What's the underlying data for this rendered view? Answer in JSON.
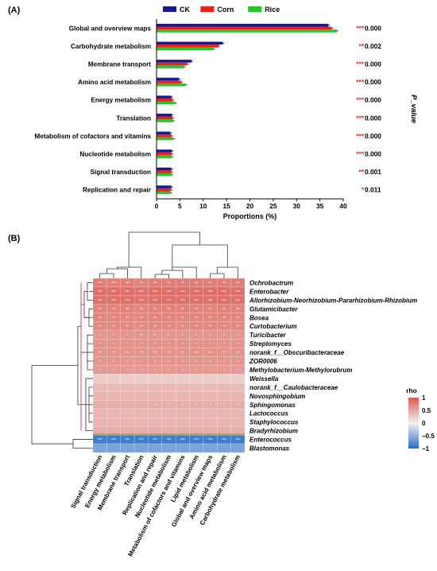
{
  "panels": {
    "a": "(A)",
    "b": "(B)"
  },
  "chart_data": [
    {
      "type": "bar",
      "orientation": "horizontal",
      "categories": [
        "Global and overview maps",
        "Carbohydrate metabolism",
        "Membrane transport",
        "Amino acid metabolism",
        "Energy metabolism",
        "Translation",
        "Metabolism of cofactors and vitamins",
        "Nucleotide metabolism",
        "Signal transduction",
        "Replication and repair"
      ],
      "series": [
        {
          "name": "CK",
          "color": "#1a1a8c",
          "values": [
            36.8,
            14.2,
            7.5,
            4.8,
            3.2,
            3.3,
            3.0,
            3.3,
            3.2,
            3.2
          ]
        },
        {
          "name": "Corn",
          "color": "#e8201e",
          "values": [
            37.5,
            13.3,
            6.6,
            5.3,
            3.4,
            3.4,
            3.2,
            3.2,
            3.2,
            3.1
          ]
        },
        {
          "name": "Rice",
          "color": "#2cc42c",
          "values": [
            38.6,
            12.2,
            5.9,
            6.2,
            4.0,
            3.6,
            3.6,
            3.3,
            3.2,
            3.0
          ]
        }
      ],
      "significance": [
        "***",
        "**",
        "***",
        "***",
        "***",
        "***",
        "***",
        "***",
        "**",
        "*"
      ],
      "p_values": [
        "0.000",
        "0.002",
        "0.000",
        "0.000",
        "0.000",
        "0.000",
        "0.000",
        "0.000",
        "0.001",
        "0.011"
      ],
      "xlabel": "Proportions (%)",
      "right_label": "P_value",
      "xticks": [
        "0",
        "5",
        "10",
        "15",
        "20",
        "25",
        "30",
        "35",
        "40"
      ],
      "xlim": [
        0,
        40
      ],
      "legend_position": "top"
    },
    {
      "type": "heatmap",
      "x_labels": [
        "Signal transduction",
        "Energy metabolism",
        "Membrane transport",
        "Translation",
        "Replication and repair",
        "Nucleotide metabolism",
        "Metabolism of cofactors and vitamins",
        "Lipid metabolism",
        "Global and overview maps",
        "Amino acid metabolism",
        "Carbohydrate metabolism"
      ],
      "y_labels": [
        "Ochrobactrum",
        "Enterobacter",
        "Allorhizobium-Neorhizobium-Pararhizobium-Rhizobium",
        "Glutamicibacter",
        "Bosea",
        "Curtobacterium",
        "Turicibacter",
        "Streptomyces",
        "norank_f__Obscuribacteraceae",
        "ZOR0006",
        "Methylobacterium-Methylorubrum",
        "Weissella",
        "norank_f__Caulobacteraceae",
        "Novosphingobium",
        "Sphingomonas",
        "Lactococcus",
        "Staphylococcus",
        "Bradyrhizobium",
        "Enterococcus",
        "Blastomonas"
      ],
      "values": [
        [
          0.75,
          0.75,
          0.75,
          0.72,
          0.75,
          0.75,
          0.75,
          0.75,
          0.75,
          0.75,
          0.75
        ],
        [
          0.85,
          0.85,
          0.85,
          0.82,
          0.85,
          0.85,
          0.85,
          0.85,
          0.85,
          0.85,
          0.85
        ],
        [
          0.85,
          0.85,
          0.85,
          0.82,
          0.85,
          0.85,
          0.85,
          0.85,
          0.85,
          0.85,
          0.85
        ],
        [
          0.72,
          0.72,
          0.72,
          0.7,
          0.72,
          0.72,
          0.72,
          0.72,
          0.72,
          0.72,
          0.72
        ],
        [
          0.7,
          0.7,
          0.7,
          0.68,
          0.7,
          0.7,
          0.7,
          0.7,
          0.7,
          0.7,
          0.7
        ],
        [
          0.68,
          0.68,
          0.68,
          0.66,
          0.68,
          0.68,
          0.68,
          0.68,
          0.68,
          0.68,
          0.68
        ],
        [
          0.6,
          0.6,
          0.6,
          0.62,
          0.6,
          0.6,
          0.6,
          0.6,
          0.6,
          0.6,
          0.6
        ],
        [
          0.62,
          0.62,
          0.62,
          0.62,
          0.62,
          0.62,
          0.62,
          0.62,
          0.62,
          0.62,
          0.62
        ],
        [
          0.62,
          0.62,
          0.62,
          0.62,
          0.62,
          0.62,
          0.62,
          0.62,
          0.62,
          0.62,
          0.62
        ],
        [
          0.6,
          0.6,
          0.6,
          0.6,
          0.6,
          0.6,
          0.6,
          0.6,
          0.6,
          0.6,
          0.6
        ],
        [
          0.58,
          0.58,
          0.58,
          0.58,
          0.58,
          0.58,
          0.58,
          0.58,
          0.58,
          0.58,
          0.58
        ],
        [
          0.25,
          0.25,
          0.25,
          0.25,
          0.25,
          0.25,
          0.25,
          0.25,
          0.25,
          0.25,
          0.25
        ],
        [
          0.35,
          0.35,
          0.35,
          0.35,
          0.35,
          0.35,
          0.35,
          0.35,
          0.35,
          0.35,
          0.35
        ],
        [
          0.4,
          0.4,
          0.4,
          0.4,
          0.4,
          0.4,
          0.4,
          0.4,
          0.4,
          0.4,
          0.4
        ],
        [
          0.45,
          0.45,
          0.45,
          0.45,
          0.45,
          0.45,
          0.45,
          0.45,
          0.45,
          0.45,
          0.45
        ],
        [
          0.4,
          0.4,
          0.4,
          0.4,
          0.4,
          0.4,
          0.4,
          0.4,
          0.4,
          0.4,
          0.4
        ],
        [
          0.4,
          0.4,
          0.4,
          0.4,
          0.4,
          0.4,
          0.4,
          0.4,
          0.4,
          0.4,
          0.4
        ],
        [
          0.45,
          0.45,
          0.45,
          0.45,
          0.45,
          0.45,
          0.45,
          0.45,
          0.45,
          0.45,
          0.45
        ],
        [
          -0.88,
          -0.88,
          -0.88,
          -0.88,
          -0.88,
          -0.88,
          -0.88,
          -0.88,
          -0.88,
          -0.88,
          -0.88
        ],
        [
          -0.6,
          -0.6,
          -0.6,
          -0.6,
          -0.6,
          -0.6,
          -0.6,
          -0.6,
          -0.6,
          -0.6,
          -0.6
        ]
      ],
      "significance": [
        [
          "***",
          "***",
          "***",
          "**",
          "**",
          "**",
          "**",
          "**",
          "**",
          "**",
          "**"
        ],
        [
          "***",
          "***",
          "***",
          "***",
          "***",
          "***",
          "***",
          "***",
          "***",
          "***",
          "***"
        ],
        [
          "***",
          "***",
          "***",
          "***",
          "***",
          "***",
          "***",
          "***",
          "***",
          "***",
          "***"
        ],
        [
          "**",
          "**",
          "**",
          "**",
          "**",
          "**",
          "**",
          "**",
          "**",
          "**",
          "**"
        ],
        [
          "**",
          "**",
          "**",
          "**",
          "**",
          "**",
          "**",
          "**",
          "**",
          "**",
          "**"
        ],
        [
          "**",
          "**",
          "**",
          "**",
          "**",
          "**",
          "**",
          "**",
          "**",
          "**",
          "**"
        ],
        [
          "*",
          "*",
          "*",
          "**",
          "*",
          "*",
          "*",
          "*",
          "*",
          "*",
          "*"
        ],
        [
          "*",
          "*",
          "*",
          "*",
          "*",
          "*",
          "*",
          "*",
          "*",
          "*",
          "*"
        ],
        [
          "**",
          "**",
          "**",
          "**",
          "**",
          "**",
          "**",
          "**",
          "**",
          "**",
          "**"
        ],
        [
          "*",
          "*",
          "*",
          "*",
          "*",
          "*",
          "*",
          "*",
          "*",
          "*",
          "*"
        ],
        [
          "*",
          "*",
          "*",
          "*",
          "*",
          "*",
          "*",
          "*",
          "*",
          "*",
          "*"
        ],
        [
          "",
          "",
          "",
          "",
          "",
          "",
          "",
          "",
          "",
          "",
          ""
        ],
        [
          "",
          "",
          "",
          "",
          "",
          "",
          "",
          "",
          "",
          "",
          ""
        ],
        [
          "",
          "",
          "",
          "",
          "",
          "",
          "",
          "",
          "",
          "",
          ""
        ],
        [
          "",
          "",
          "",
          "",
          "*",
          "*",
          "*",
          "*",
          "*",
          "*",
          "*"
        ],
        [
          "",
          "",
          "",
          "",
          "",
          "",
          "",
          "",
          "",
          "",
          ""
        ],
        [
          "",
          "",
          "",
          "",
          "",
          "",
          "",
          "",
          "",
          "",
          ""
        ],
        [
          "",
          "",
          "",
          "",
          "",
          "",
          "",
          "",
          "",
          "",
          ""
        ],
        [
          "***",
          "***",
          "***",
          "***",
          "***",
          "***",
          "***",
          "***",
          "***",
          "***",
          "***"
        ],
        [
          "",
          "",
          "",
          "",
          "",
          "",
          "",
          "",
          "",
          "",
          ""
        ]
      ],
      "colorbar": {
        "title": "rho",
        "ticks": [
          "1",
          "0.5",
          "0",
          "−0.5",
          "−1"
        ],
        "range": [
          -1,
          1
        ]
      }
    }
  ]
}
